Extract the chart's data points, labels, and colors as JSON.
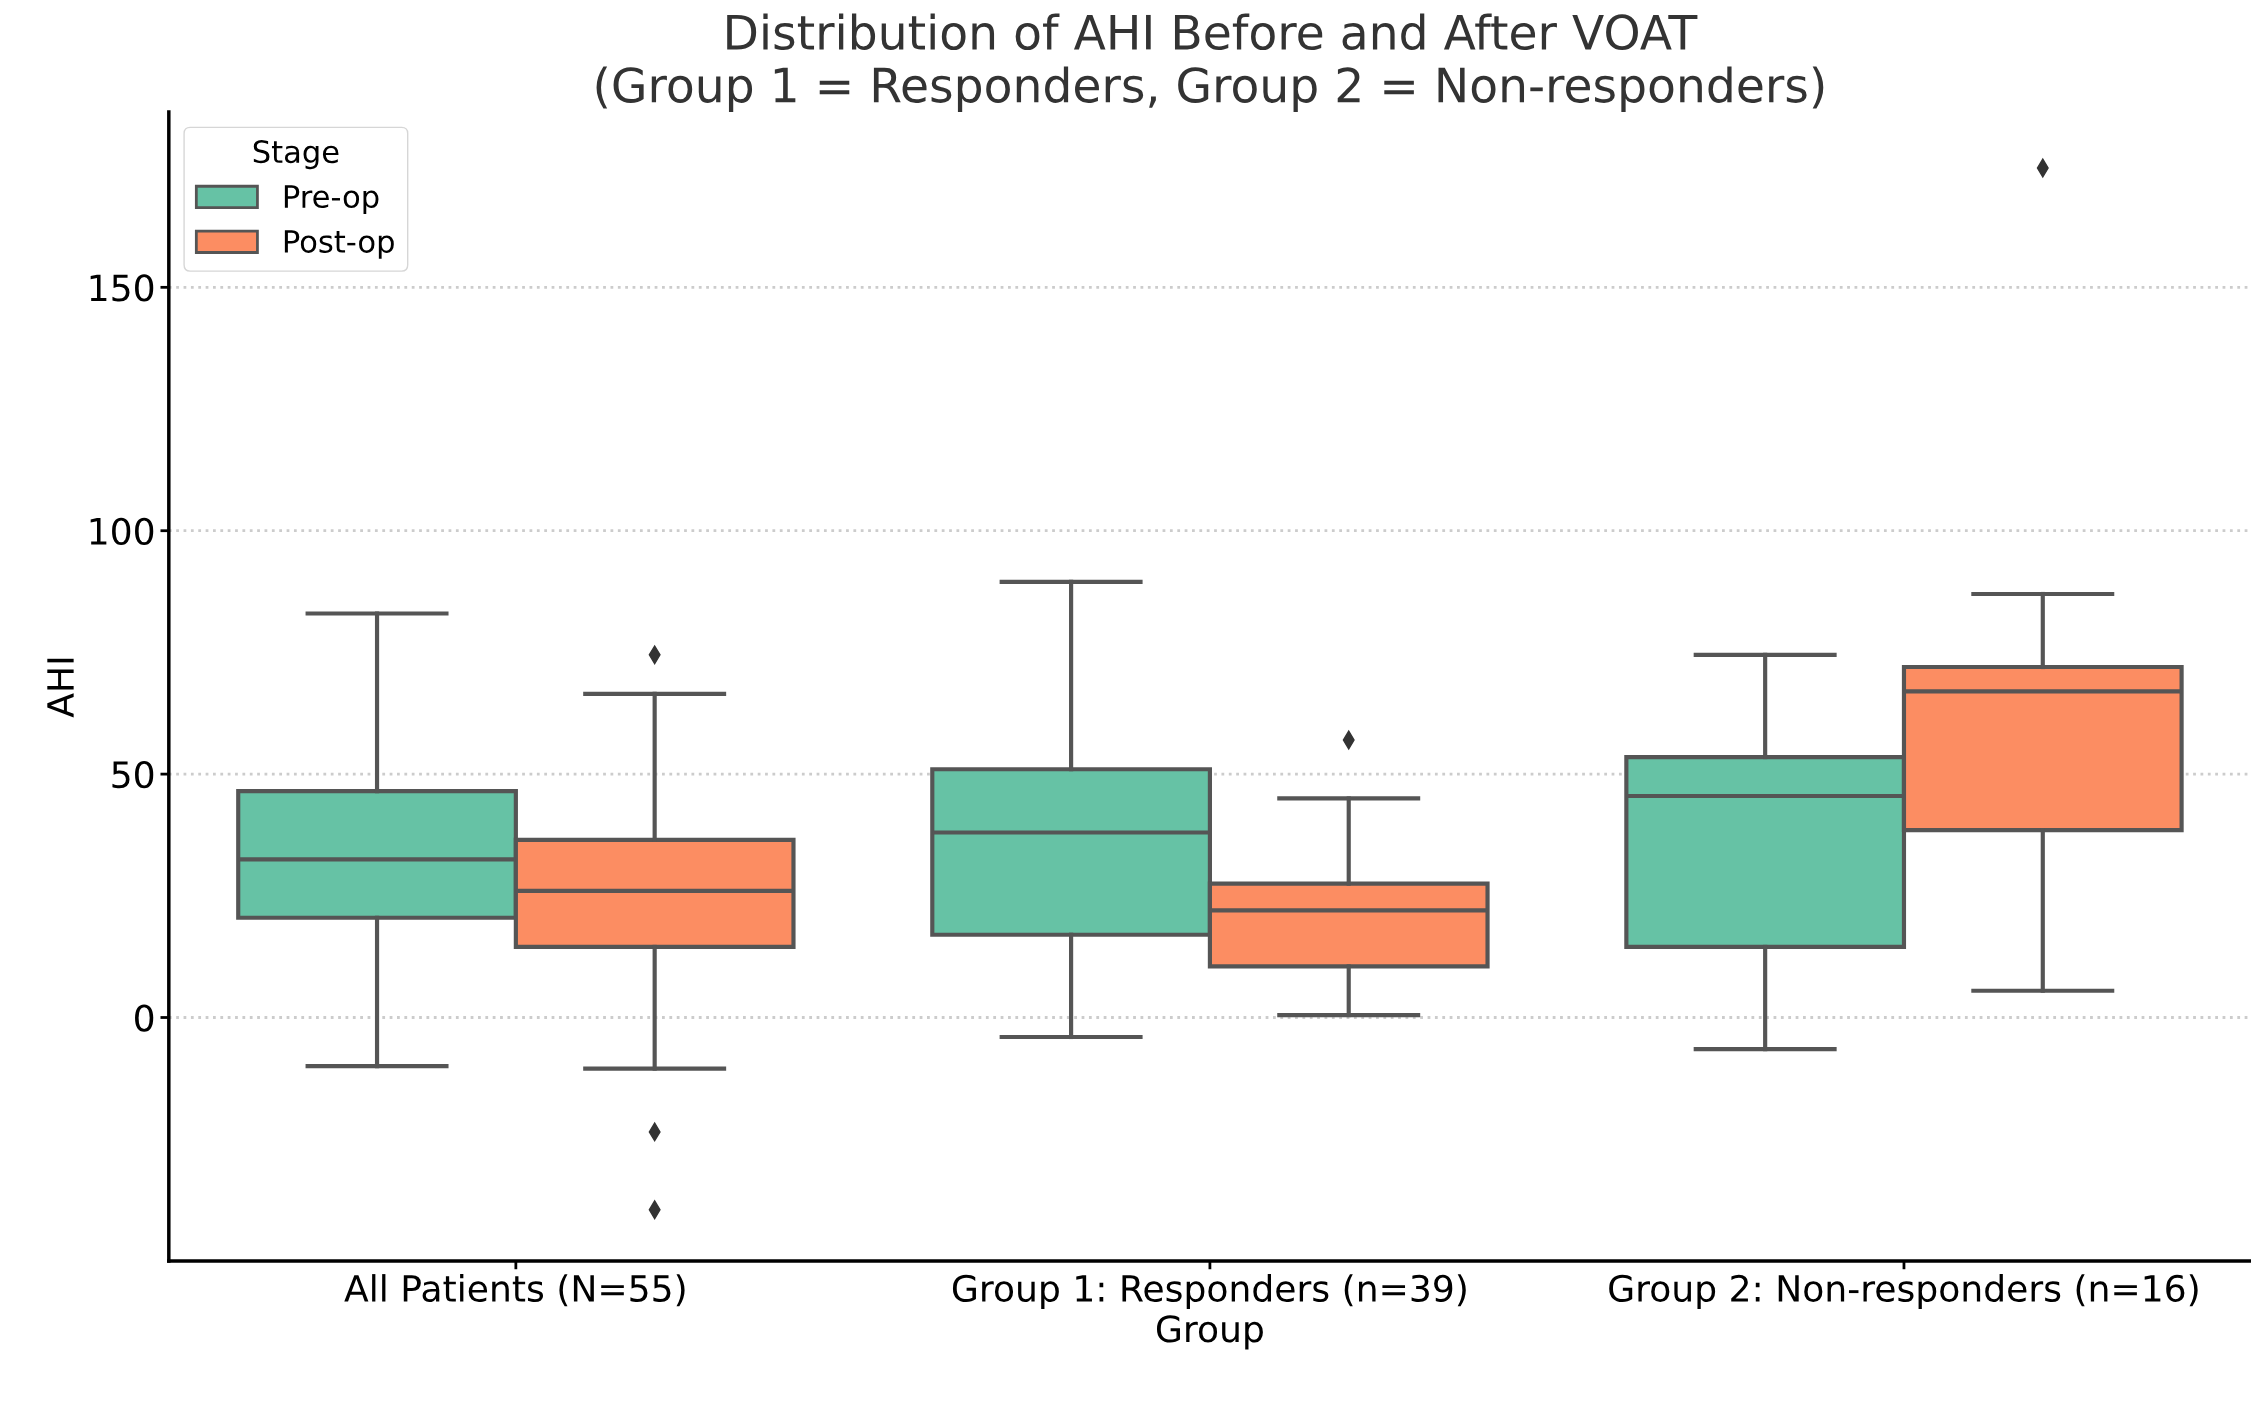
{
  "chart_data": {
    "type": "box",
    "title": "Distribution of AHI Before and After VOAT\n(Group 1 = Responders, Group 2 = Non-responders)",
    "xlabel": "Group",
    "ylabel": "AHI",
    "legend_title": "Stage",
    "categories": [
      "All Patients (N=55)",
      "Group 1: Responders (n=39)",
      "Group 2: Non-responders (n=16)"
    ],
    "series": [
      {
        "name": "Pre-op",
        "color": "#66c2a5",
        "boxes": [
          {
            "low": -10,
            "q1": 20.5,
            "median": 32.5,
            "q3": 46.5,
            "high": 83
          },
          {
            "low": -4,
            "q1": 17,
            "median": 38,
            "q3": 51,
            "high": 89.5
          },
          {
            "low": -6.5,
            "q1": 14.5,
            "median": 45.5,
            "q3": 53.5,
            "high": 74.5
          }
        ]
      },
      {
        "name": "Post-op",
        "color": "#fc8d62",
        "boxes": [
          {
            "low": -10.5,
            "q1": 14.5,
            "median": 26,
            "q3": 36.5,
            "high": 66.5,
            "outliers": [
              74.5,
              -23.5,
              -39.5
            ]
          },
          {
            "low": 0.5,
            "q1": 10.5,
            "median": 22,
            "q3": 27.5,
            "high": 45,
            "outliers": [
              57
            ]
          },
          {
            "low": 5.5,
            "q1": 38.5,
            "median": 67,
            "q3": 72,
            "high": 87,
            "outliers": [
              174.5
            ]
          }
        ]
      }
    ],
    "ylim": [
      -50,
      186
    ],
    "yticks": [
      0,
      50,
      100,
      150
    ],
    "grid": "y",
    "legend": "top left"
  }
}
